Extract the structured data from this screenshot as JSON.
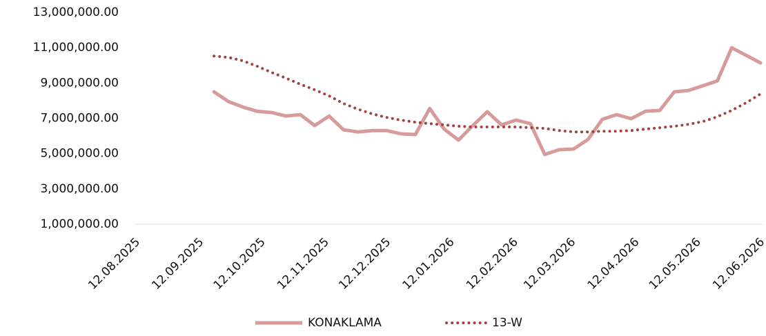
{
  "chart_data": {
    "type": "line",
    "x": [
      "18.09.2025",
      "25.09.2025",
      "02.10.2025",
      "09.10.2025",
      "16.10.2025",
      "23.10.2025",
      "30.10.2025",
      "06.11.2025",
      "13.11.2025",
      "20.11.2025",
      "27.11.2025",
      "04.12.2025",
      "11.12.2025",
      "18.12.2025",
      "25.12.2025",
      "01.01.2026",
      "08.01.2026",
      "15.01.2026",
      "22.01.2026",
      "29.01.2026",
      "05.02.2026",
      "12.02.2026",
      "19.02.2026",
      "26.02.2026",
      "05.03.2026",
      "12.03.2026",
      "19.03.2026",
      "26.03.2026",
      "02.04.2026",
      "09.04.2026",
      "16.04.2026",
      "23.04.2026",
      "30.04.2026",
      "07.05.2026",
      "14.05.2026",
      "21.05.2026",
      "28.05.2026",
      "04.06.2026",
      "11.06.2026"
    ],
    "series": [
      {
        "name": "KONAKLAMA",
        "color": "#d69b9b",
        "style": "solid",
        "values": [
          8500000,
          7950000,
          7640000,
          7400000,
          7330000,
          7130000,
          7210000,
          6590000,
          7130000,
          6350000,
          6230000,
          6310000,
          6310000,
          6120000,
          6080000,
          7560000,
          6390000,
          5770000,
          6590000,
          7370000,
          6630000,
          6900000,
          6700000,
          4950000,
          5220000,
          5260000,
          5800000,
          6940000,
          7210000,
          6980000,
          7400000,
          7450000,
          8500000,
          8580000,
          8850000,
          9120000,
          11000000,
          10570000,
          10140000
        ]
      },
      {
        "name": "13-W",
        "color": "#a3423f",
        "style": "dotted",
        "values": [
          10530000,
          10450000,
          10260000,
          9950000,
          9600000,
          9280000,
          8930000,
          8620000,
          8270000,
          7840000,
          7520000,
          7250000,
          7050000,
          6900000,
          6780000,
          6700000,
          6630000,
          6550000,
          6510000,
          6510000,
          6510000,
          6510000,
          6470000,
          6430000,
          6310000,
          6230000,
          6230000,
          6270000,
          6270000,
          6310000,
          6390000,
          6470000,
          6550000,
          6660000,
          6820000,
          7090000,
          7450000,
          7880000,
          8380000
        ]
      }
    ],
    "xlim": [
      "12.08.2025",
      "12.06.2026"
    ],
    "xticks": [
      "12.08.2025",
      "12.09.2025",
      "12.10.2025",
      "12.11.2025",
      "12.12.2025",
      "12.01.2026",
      "12.02.2026",
      "12.03.2026",
      "12.04.2026",
      "12.05.2026",
      "12.06.2026"
    ],
    "ylim": [
      1000000,
      13000000
    ],
    "yticks": [
      {
        "value": 1000000,
        "label": "1,000,000.00"
      },
      {
        "value": 3000000,
        "label": "3,000,000.00"
      },
      {
        "value": 5000000,
        "label": "5,000,000.00"
      },
      {
        "value": 7000000,
        "label": "7,000,000.00"
      },
      {
        "value": 9000000,
        "label": "9,000,000.00"
      },
      {
        "value": 11000000,
        "label": "11,000,000.00"
      },
      {
        "value": 13000000,
        "label": "13,000,000.00"
      }
    ],
    "grid": false,
    "legend": "bottom"
  }
}
